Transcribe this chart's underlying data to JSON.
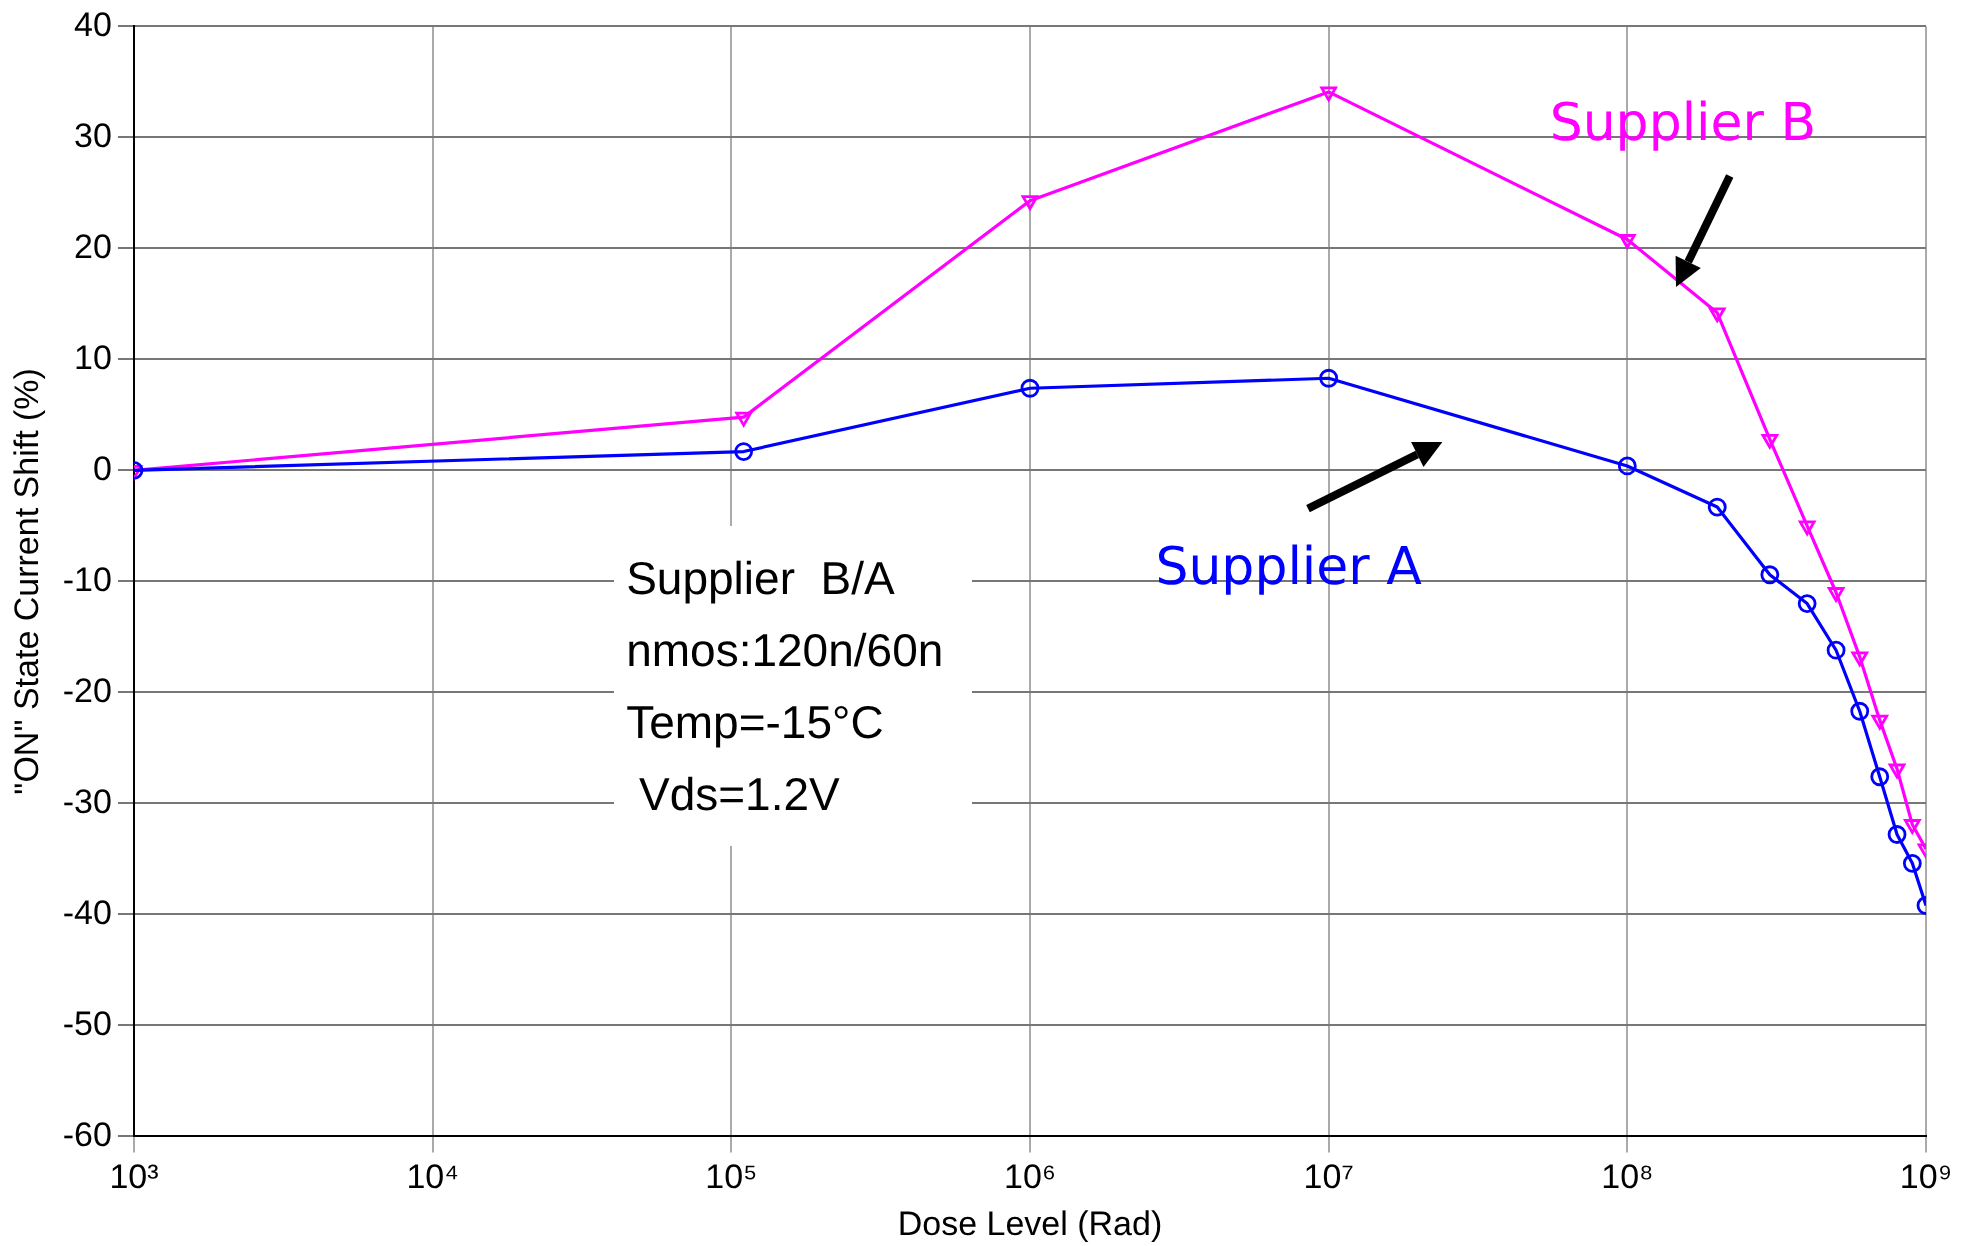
{
  "chart_data": {
    "type": "line",
    "xlabel": "Dose Level (Rad)",
    "ylabel": "\"ON\" State Current Shift (%)",
    "annotations": [
      "Supplier  B/A",
      "nmos:120n/60n",
      "Temp=-15°C",
      " Vds=1.2V"
    ],
    "log": "x",
    "grid": true,
    "legend": false,
    "line_style": "solid",
    "xlim": [
      1000,
      1000000000
    ],
    "xticks": [
      {
        "value": 1000,
        "label": "10³"
      },
      {
        "value": 10000,
        "label": "10⁴"
      },
      {
        "value": 100000,
        "label": "10⁵"
      },
      {
        "value": 1000000,
        "label": "10⁶"
      },
      {
        "value": 10000000,
        "label": "10⁷"
      },
      {
        "value": 100000000,
        "label": "10⁸"
      },
      {
        "value": 1000000000,
        "label": "10⁹"
      }
    ],
    "ylim": [
      -60,
      40
    ],
    "yticks": [
      -60,
      -50,
      -40,
      -30,
      -20,
      -10,
      0,
      10,
      20,
      30,
      40
    ],
    "series": [
      {
        "name": "Supplier A",
        "color": "#0000ff",
        "marker": "circle",
        "x": [
          1000,
          110000,
          1000000,
          10000000,
          100000000,
          200000000,
          300000000,
          400000000,
          500000000,
          600000000,
          700000000,
          800000000,
          900000000,
          1000000000
        ],
        "values": [
          0,
          1.7,
          7.4,
          8.3,
          0.4,
          -3.3,
          -9.4,
          -12.0,
          -16.2,
          -21.7,
          -27.6,
          -32.8,
          -35.4,
          -39.2
        ]
      },
      {
        "name": "Supplier B",
        "color": "#ff00ff",
        "marker": "triangle",
        "x": [
          1000,
          110000,
          1000000,
          10000000,
          100000000,
          200000000,
          300000000,
          400000000,
          500000000,
          600000000,
          700000000,
          800000000,
          900000000,
          1000000000
        ],
        "values": [
          0,
          4.8,
          24.3,
          34.1,
          20.8,
          14.2,
          2.8,
          -5.0,
          -11.0,
          -16.8,
          -22.5,
          -26.9,
          -31.9,
          -34.1
        ]
      }
    ]
  }
}
